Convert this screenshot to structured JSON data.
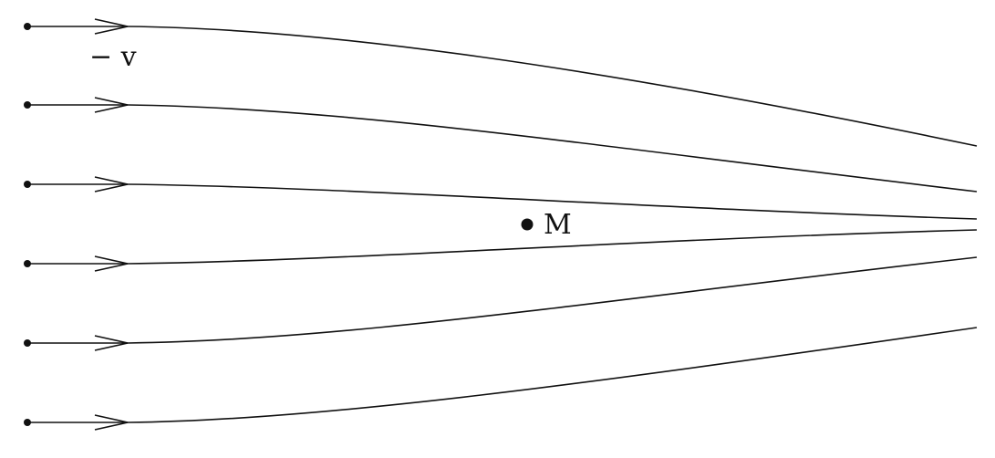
{
  "labels": {
    "velocity": "− v",
    "mass": "M"
  },
  "colors": {
    "ink": "#111111",
    "background": "#ffffff"
  }
}
